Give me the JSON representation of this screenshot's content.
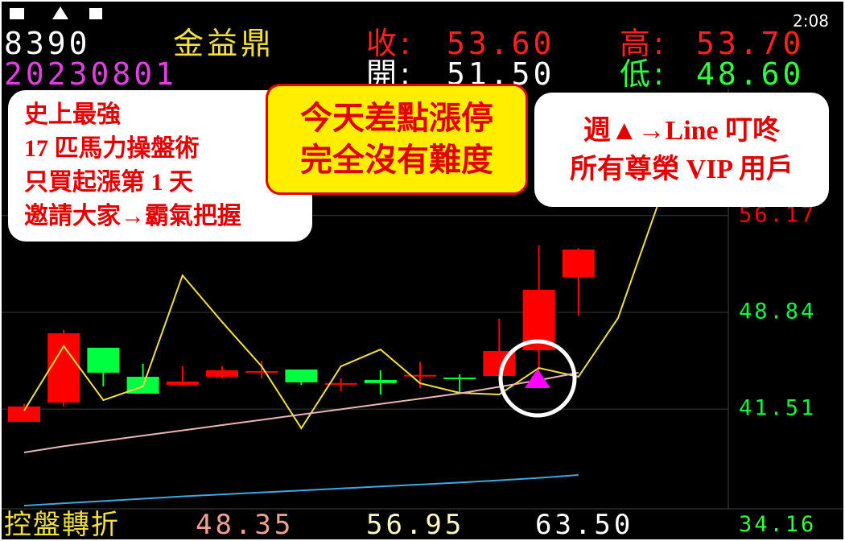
{
  "status_bar": {
    "time": "2:08"
  },
  "header": {
    "code": "8390",
    "name": "金益鼎",
    "date": "20230801",
    "close_label": "收:",
    "close": "53.60",
    "high_label": "高:",
    "high": "53.70",
    "open_label": "開:",
    "open": "51.50",
    "low_label": "低:",
    "low": "48.60"
  },
  "callouts": [
    {
      "lines": [
        "史上最強",
        "17 匹馬力操盤術",
        "只買起漲第 1 天",
        "邀請大家→霸氣把握"
      ]
    },
    {
      "lines": [
        "今天差點漲停",
        "完全沒有難度"
      ]
    },
    {
      "lines": [
        "週▲→Line  叮咚",
        "所有尊榮 VIP 用戶"
      ]
    }
  ],
  "footer": {
    "label": "控盤轉折",
    "v1": "48.35",
    "v2": "56.95",
    "v3": "63.50",
    "v4": "34.16"
  },
  "chart_data": {
    "type": "candlestick",
    "categories": [
      null,
      null,
      null,
      null,
      null,
      null,
      null,
      null,
      null,
      null,
      null,
      null,
      null,
      null,
      null,
      null,
      null
    ],
    "open": [
      40.55,
      42.01,
      46.16,
      43.96,
      43.35,
      43.96,
      44.27,
      44.51,
      43.42,
      43.72,
      44.0,
      43.9,
      44.02,
      45.97,
      51.5,
      null,
      null
    ],
    "high": [
      41.9,
      47.5,
      46.16,
      44.94,
      44.75,
      44.75,
      45.18,
      44.51,
      43.84,
      44.45,
      45.06,
      44.14,
      48.35,
      53.9,
      53.7,
      null,
      null
    ],
    "low": [
      40.55,
      41.71,
      43.23,
      42.68,
      43.23,
      43.84,
      43.84,
      43.35,
      42.86,
      42.62,
      43.11,
      42.74,
      44.02,
      44.45,
      48.6,
      null,
      null
    ],
    "close": [
      41.71,
      47.25,
      44.27,
      42.68,
      43.6,
      44.45,
      44.39,
      43.54,
      43.48,
      43.48,
      44.1,
      43.8,
      45.91,
      50.55,
      53.6,
      null,
      null
    ],
    "up_color": "#ff0000",
    "down_color": "#00ff40",
    "lines": [
      {
        "color": "#f0e040",
        "values": [
          41.4,
          46.28,
          42.19,
          43.23,
          51.64,
          48.11,
          44.75,
          40.06,
          44.75,
          46.03,
          43.47,
          42.74,
          42.62,
          44.63,
          43.96,
          48.41,
          56.95
        ]
      },
      {
        "color": "#e8b4b8",
        "values": [
          38.23,
          38.7,
          39.1,
          39.5,
          39.9,
          40.3,
          40.7,
          41.1,
          41.5,
          41.9,
          42.3,
          42.7,
          43.2,
          43.7,
          44.27,
          null,
          null
        ]
      },
      {
        "color": "#3ea8e0",
        "values": [
          34.2,
          34.38,
          34.55,
          34.72,
          34.9,
          35.05,
          35.2,
          35.35,
          35.5,
          35.65,
          35.8,
          35.95,
          36.12,
          36.3,
          36.52,
          null,
          null
        ]
      }
    ],
    "ylim": [
      33.96,
      65.79
    ],
    "yticks": [
      56.17,
      48.84,
      41.51
    ],
    "grid": true,
    "grid_color": "#3a3a3a"
  }
}
